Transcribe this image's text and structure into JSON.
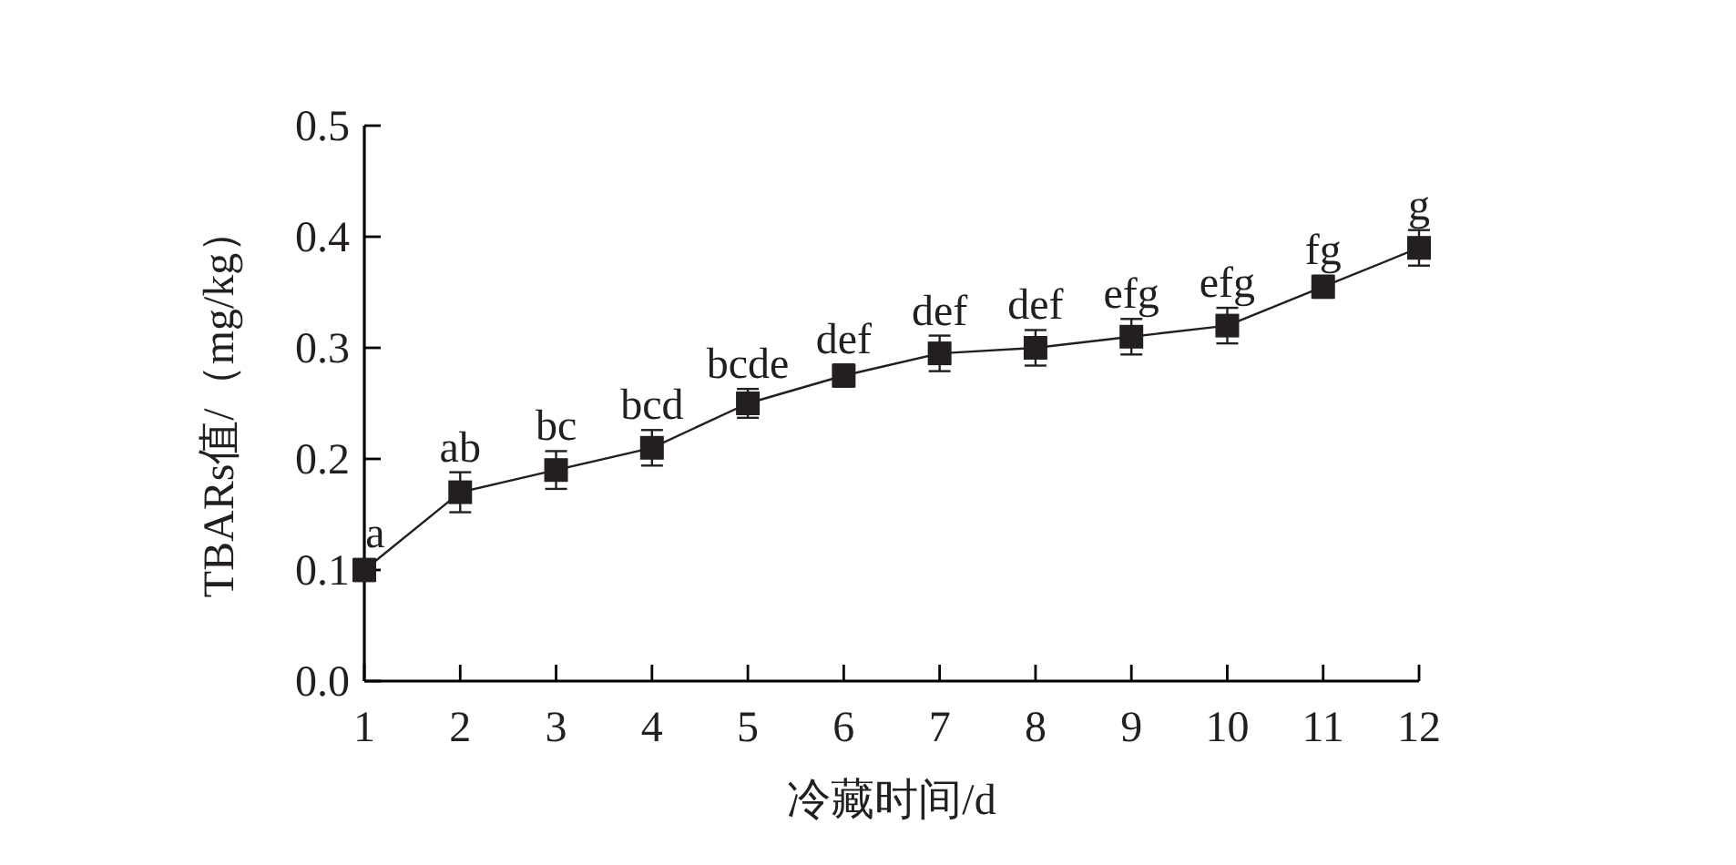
{
  "chart_data": {
    "type": "line",
    "xlabel": "冷藏时间/d",
    "ylabel": "TBARs值/（mg/kg）",
    "x": [
      1,
      2,
      3,
      4,
      5,
      6,
      7,
      8,
      9,
      10,
      11,
      12
    ],
    "values": [
      0.1,
      0.17,
      0.19,
      0.21,
      0.25,
      0.275,
      0.295,
      0.3,
      0.31,
      0.32,
      0.355,
      0.39
    ],
    "errors": [
      0.01,
      0.018,
      0.017,
      0.016,
      0.013,
      0.01,
      0.016,
      0.016,
      0.016,
      0.016,
      0.01,
      0.016
    ],
    "value_labels": [
      "a",
      "ab",
      "bc",
      "bcd",
      "bcde",
      "def",
      "def",
      "def",
      "efg",
      "efg",
      "fg",
      "g"
    ],
    "color": "#231f20",
    "marker": "square",
    "line_style": "solid",
    "xlim": [
      1,
      12
    ],
    "xticks": [
      1,
      2,
      3,
      4,
      5,
      6,
      7,
      8,
      9,
      10,
      11,
      12
    ],
    "ylim": [
      0,
      0.5
    ],
    "yticks": [
      {
        "value": 0,
        "label": "0.0"
      },
      {
        "value": 0.1,
        "label": "0.1"
      },
      {
        "value": 0.2,
        "label": "0.2"
      },
      {
        "value": 0.3,
        "label": "0.3"
      },
      {
        "value": 0.4,
        "label": "0.4"
      },
      {
        "value": 0.5,
        "label": "0.5"
      }
    ]
  }
}
